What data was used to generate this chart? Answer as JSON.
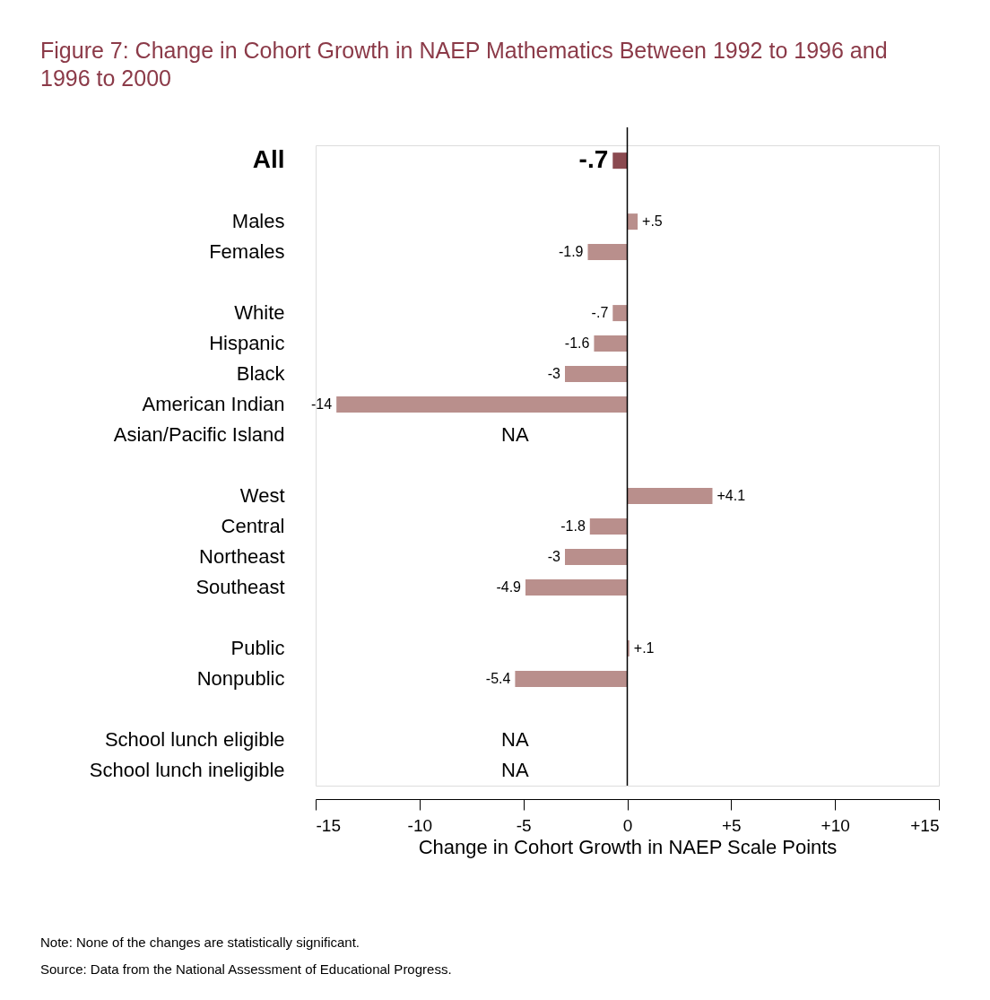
{
  "chart_data": {
    "type": "bar",
    "orientation": "horizontal",
    "title": [
      "Figure 7: Change in Cohort Growth in NAEP Mathematics Between 1992 to 1996 and",
      "1996 to 2000"
    ],
    "xlabel": "Change in Cohort Growth in NAEP Scale Points",
    "categories": [
      "All",
      null,
      "Males",
      "Females",
      null,
      "White",
      "Hispanic",
      "Black",
      "American Indian",
      "Asian/Pacific Island",
      null,
      "West",
      "Central",
      "Northeast",
      "Southeast",
      null,
      "Public",
      "Nonpublic",
      null,
      "School lunch eligible",
      "School lunch ineligible"
    ],
    "values": [
      -0.7,
      null,
      0.5,
      -1.9,
      null,
      -0.7,
      -1.6,
      -3,
      -14,
      null,
      null,
      4.1,
      -1.8,
      -3,
      -4.9,
      null,
      0.1,
      -5.4,
      null,
      null,
      null
    ],
    "value_labels": [
      "-.7",
      null,
      "+.5",
      "-1.9",
      null,
      "-.7",
      "-1.6",
      "-3",
      "-14",
      "NA",
      null,
      "+4.1",
      "-1.8",
      "-3",
      "-4.9",
      null,
      "+.1",
      "-5.4",
      null,
      "NA",
      "NA"
    ],
    "colors": [
      "#8b4a50",
      null,
      "#b98f8c",
      "#b98f8c",
      null,
      "#b98f8c",
      "#b98f8c",
      "#b98f8c",
      "#b98f8c",
      null,
      null,
      "#b98f8c",
      "#b98f8c",
      "#b98f8c",
      "#b98f8c",
      null,
      "#b98f8c",
      "#b98f8c",
      null,
      null,
      null
    ],
    "xlim": [
      -15,
      15
    ],
    "xticks": [
      -15,
      -10,
      -5,
      0,
      {
        "value": 5,
        "label": "+5"
      },
      {
        "value": 10,
        "label": "+10"
      },
      {
        "value": 15,
        "label": "+15"
      }
    ],
    "grid": false,
    "ref_lines": [
      {
        "axis": "x",
        "value": 0,
        "color": "#000000"
      }
    ],
    "annotations": [
      "Note: None of the changes are statistically significant.",
      "Source: Data from the National Assessment of Educational Progress."
    ]
  }
}
